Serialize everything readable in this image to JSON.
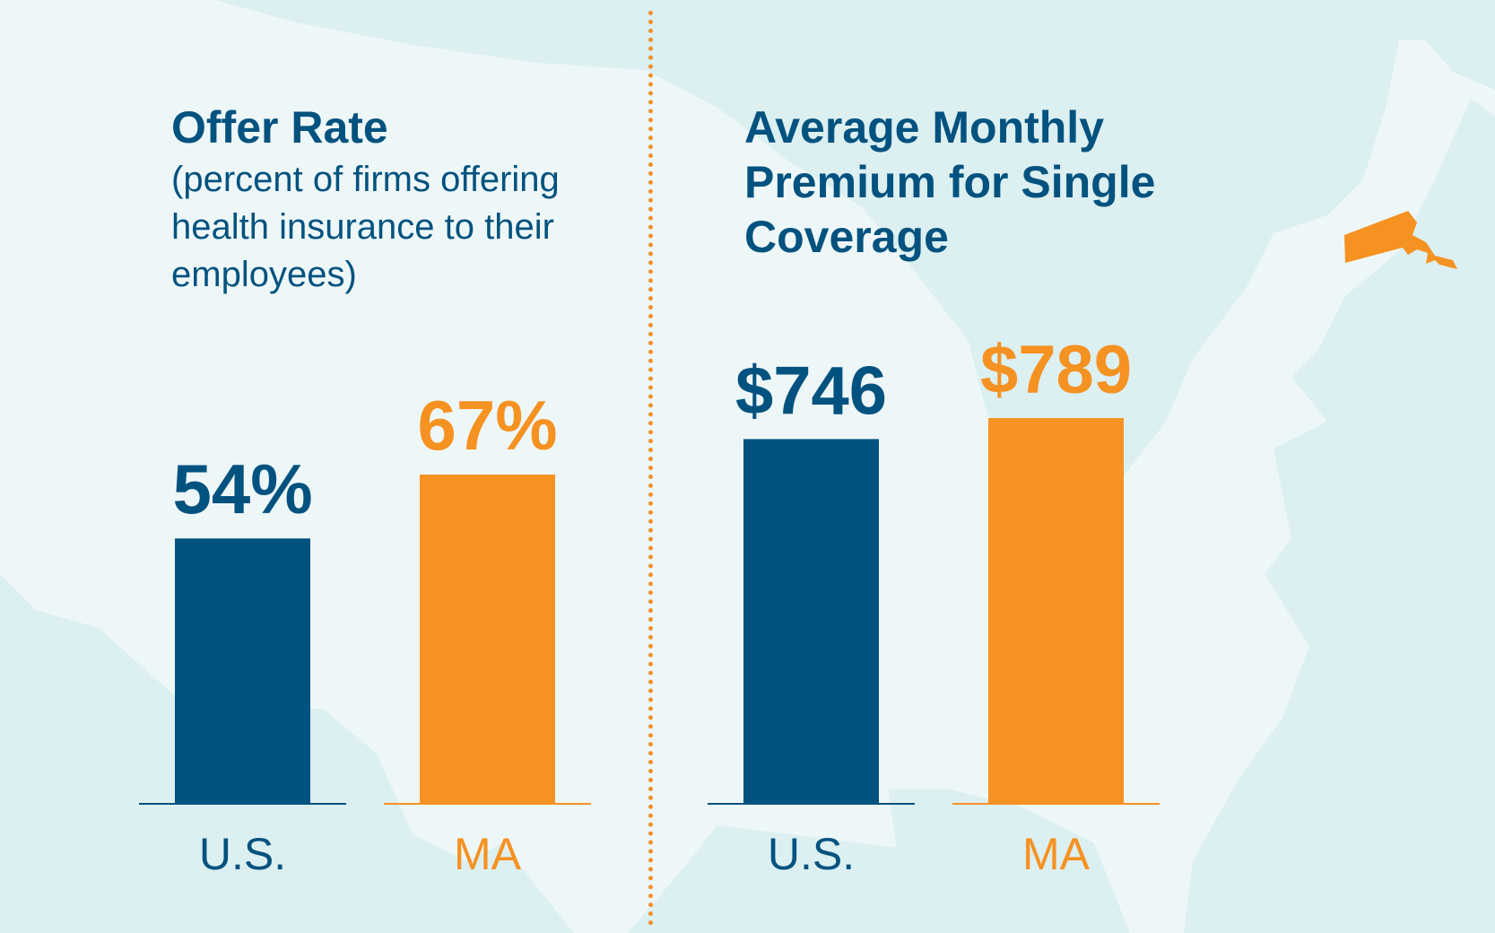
{
  "colors": {
    "us": "#02527f",
    "ma": "#f59222",
    "background": "#eef7f8",
    "map": "#dcefF1"
  },
  "chart_data": [
    {
      "type": "bar",
      "title": "Offer Rate",
      "subtitle": [
        "(percent of firms offering",
        "health insurance to their",
        "employees)"
      ],
      "categories": [
        "U.S.",
        "MA"
      ],
      "values": [
        54,
        67
      ],
      "labels": [
        "54%",
        "67%"
      ],
      "ylim": [
        0,
        67
      ]
    },
    {
      "type": "bar",
      "title": [
        "Average Monthly",
        "Premium for Single",
        "Coverage"
      ],
      "categories": [
        "U.S.",
        "MA"
      ],
      "values": [
        746,
        789
      ],
      "labels": [
        "$746",
        "$789"
      ],
      "ylim": [
        0,
        789
      ]
    }
  ]
}
